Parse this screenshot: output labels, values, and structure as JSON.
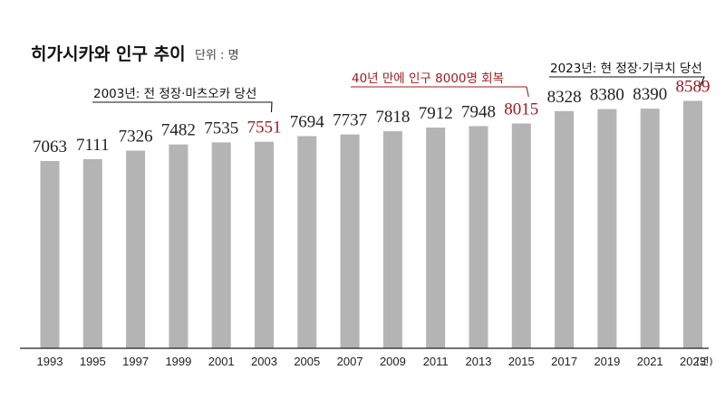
{
  "chart_data": {
    "type": "bar",
    "title": "히가시카와 인구 추이",
    "unit": "단위 : 명",
    "x_unit": "(년)",
    "categories": [
      "1993",
      "1995",
      "1997",
      "1999",
      "2001",
      "2003",
      "2005",
      "2007",
      "2009",
      "2011",
      "2013",
      "2015",
      "2017",
      "2019",
      "2021",
      "2023"
    ],
    "values": [
      7063,
      7111,
      7326,
      7482,
      7535,
      7551,
      7694,
      7737,
      7818,
      7912,
      7948,
      8015,
      8328,
      8380,
      8390,
      8589
    ],
    "highlighted": [
      "2003",
      "2015",
      "2023"
    ],
    "annotations": [
      {
        "category": "2003",
        "text": "2003년: 전 정장·마츠오카 당선"
      },
      {
        "category": "2015",
        "text": "40년 만에 인구 8000명 회복"
      },
      {
        "category": "2023",
        "text": "2023년: 현 정장·기쿠치 당선"
      }
    ],
    "colors": {
      "bar": "#b4b4b4",
      "highlight": "#a01c1c",
      "text": "#222222"
    }
  }
}
